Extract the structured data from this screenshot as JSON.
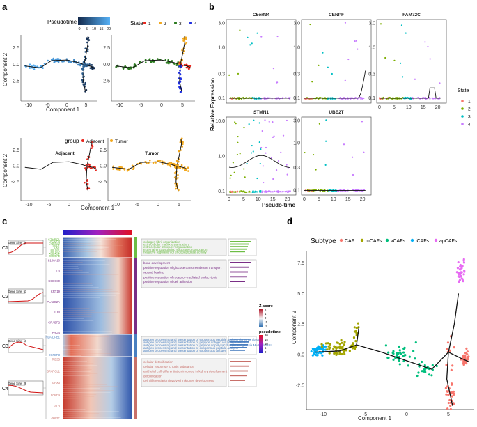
{
  "panels": {
    "a": {
      "label": "a",
      "pseudotime_legend": {
        "title": "Pseudotime",
        "ticks": [
          "0",
          "5",
          "10",
          "15",
          "20"
        ]
      },
      "state_legend": {
        "title": "State",
        "items": [
          {
            "label": "1",
            "color": "#e8261d"
          },
          {
            "label": "2",
            "color": "#f2a81d"
          },
          {
            "label": "3",
            "color": "#2a7a1e"
          },
          {
            "label": "4",
            "color": "#1f2fe0"
          }
        ]
      },
      "group_legend": {
        "title": "group",
        "items": [
          {
            "label": "Adjacent",
            "color": "#e8261d"
          },
          {
            "label": "Tumor",
            "color": "#f2a81d"
          }
        ]
      },
      "xlabel": "Component 1",
      "ylabel": "Component 2",
      "x_ticks": [
        "-10",
        "-5",
        "0",
        "5"
      ],
      "y_ticks": [
        "2.5",
        "0.0",
        "-2.5"
      ],
      "facet_titles": [
        "Adjacent",
        "Tumor"
      ]
    },
    "b": {
      "label": "b",
      "ylabel": "Relative Expression",
      "xlabel": "Pseudo-time",
      "genes": [
        "C5orf34",
        "CENPF",
        "FAM72C",
        "STMN1",
        "UBE2T"
      ],
      "y_ticks": [
        "3.0",
        "1.0",
        "0.3",
        "0.1"
      ],
      "y_ticks_stmn1": [
        "10.0",
        "1.0",
        "0.1"
      ],
      "x_ticks": [
        "0",
        "5",
        "10",
        "15",
        "20"
      ],
      "state_legend": {
        "title": "State",
        "items": [
          {
            "label": "1",
            "color": "#f8766d"
          },
          {
            "label": "2",
            "color": "#7cae00"
          },
          {
            "label": "3",
            "color": "#00bfc4"
          },
          {
            "label": "4",
            "color": "#c77cff"
          }
        ]
      }
    },
    "c": {
      "label": "c",
      "clusters": [
        {
          "id": "C1",
          "gene_size": "Gene Size: 26",
          "color": "#6dbd45",
          "genes": [
            "CTHRC1",
            "POSTN",
            "COL6A3",
            "TIMP1",
            "FN1",
            "COL1A1",
            "COL1A2",
            "COL3A1",
            "COL5A1"
          ],
          "terms": [
            "collagen fibril organization",
            "extracellular matrix organization",
            "extracellular structure organization",
            "external encapsulating structure organization",
            "negative regulation of endopeptidase activity"
          ]
        },
        {
          "id": "C2",
          "gene_size": "Gene Size: 51",
          "color": "#7a2f86",
          "genes": [
            "S100A10",
            "C3",
            "CCDC80",
            "KRT19",
            "PLA2G2A",
            "SLPI",
            "CRABP2",
            "PRG4"
          ],
          "terms": [
            "bone development",
            "positive regulation of glucose transmembrane transport",
            "wound healing",
            "positive regulation of receptor-mediated endocytosis",
            "positive regulation of cell adhesion"
          ]
        },
        {
          "id": "C3",
          "gene_size": "Gene Size: 17",
          "color": "#4a7fc0",
          "genes": [
            "HLA-DPB1",
            "IGFBP3"
          ],
          "terms": [
            "antigen processing and presentation of exogenous peptide antigen via MHC class II",
            "antigen processing and presentation of peptide antigen via MHC class II",
            "antigen processing and presentation of peptide or polysaccharide antigen via MHC class II",
            "antigen processing and presentation of exogenous peptide antigen",
            "antigen processing and presentation of exogenous antigen"
          ]
        },
        {
          "id": "C4",
          "gene_size": "Gene Size: 26",
          "color": "#c8706a",
          "genes": [
            "RGS5",
            "SPARCL1",
            "GPX3",
            "FABP4",
            "ALB",
            "ADIRF"
          ],
          "terms": [
            "cellular detoxification",
            "cellular response to toxic substance",
            "epithelial cell differentiation involved in kidney development",
            "detoxification",
            "cell differentiation involved in kidney development"
          ]
        }
      ],
      "zscore_legend": {
        "title": "Z-score",
        "ticks": [
          "2",
          "1",
          "0",
          "-1",
          "-2"
        ]
      },
      "pseudotime_legend": {
        "title": "pseudotime",
        "ticks": [
          "20",
          "15",
          "10",
          "5",
          "0"
        ]
      }
    },
    "d": {
      "label": "d",
      "legend_title": "Subtype",
      "subtypes": [
        {
          "label": "CAF",
          "color": "#f8766d"
        },
        {
          "label": "mCAFs",
          "color": "#a3a500"
        },
        {
          "label": "vCAFs",
          "color": "#00bf7d"
        },
        {
          "label": "iCAFs",
          "color": "#00b0f6"
        },
        {
          "label": "apCAFs",
          "color": "#e76bf3"
        }
      ],
      "xlabel": "Component 1",
      "ylabel": "Component 2",
      "x_ticks": [
        "-10",
        "-5",
        "0",
        "5"
      ],
      "y_ticks": [
        "7.5",
        "5.0",
        "2.5",
        "0.0",
        "-2.5"
      ]
    }
  }
}
